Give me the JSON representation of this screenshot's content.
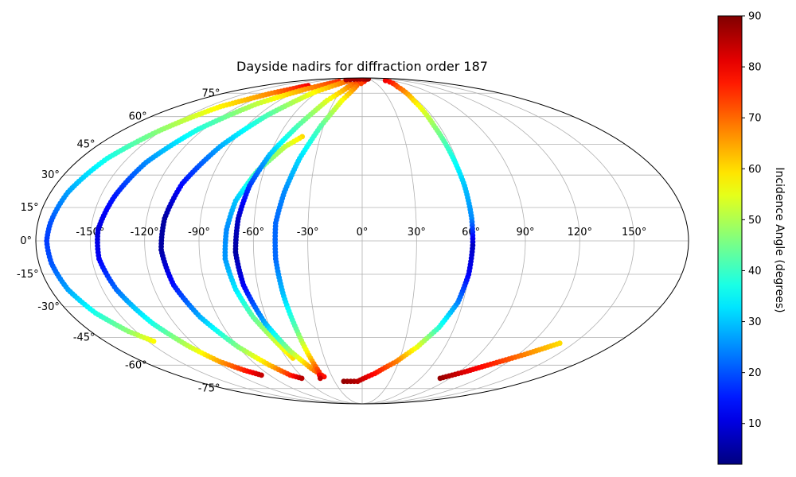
{
  "chart_data": {
    "type": "scatter",
    "projection": "mollweide",
    "title": "Dayside nadirs for diffraction order 187",
    "grid": true,
    "longitude_ticks": [
      -150,
      -120,
      -90,
      -60,
      -30,
      0,
      30,
      60,
      90,
      120,
      150
    ],
    "longitude_tick_labels": [
      "-150°",
      "-120°",
      "-90°",
      "-60°",
      "-30°",
      "0°",
      "30°",
      "60°",
      "90°",
      "120°",
      "150°"
    ],
    "latitude_ticks": [
      -75,
      -60,
      -45,
      -30,
      -15,
      0,
      15,
      30,
      45,
      60,
      75
    ],
    "latitude_tick_labels": [
      "-75°",
      "-60°",
      "-45°",
      "-30°",
      "-15°",
      "0°",
      "15°",
      "30°",
      "45°",
      "60°",
      "75°"
    ],
    "colormap": "jet",
    "colorbar": {
      "label": "Incidence Angle (degrees)",
      "range": [
        2,
        90
      ],
      "ticks": [
        10,
        20,
        30,
        40,
        50,
        60,
        70,
        80,
        90
      ],
      "tick_labels": [
        "10",
        "20",
        "30",
        "40",
        "50",
        "60",
        "70",
        "80",
        "90"
      ],
      "placement": "right"
    },
    "series": [
      {
        "points": [
          {
            "lon": -98,
            "lat": 81,
            "inc": 80
          },
          {
            "lon": -118,
            "lat": 75,
            "inc": 68
          },
          {
            "lon": -138,
            "lat": 66,
            "inc": 58
          },
          {
            "lon": -152,
            "lat": 52,
            "inc": 47
          },
          {
            "lon": -163,
            "lat": 38,
            "inc": 37
          },
          {
            "lon": -170,
            "lat": 22,
            "inc": 27
          },
          {
            "lon": -173,
            "lat": 8,
            "inc": 20
          },
          {
            "lon": -174,
            "lat": 0,
            "inc": 18
          },
          {
            "lon": -173,
            "lat": -10,
            "inc": 20
          },
          {
            "lon": -170,
            "lat": -22,
            "inc": 27
          },
          {
            "lon": -164,
            "lat": -33,
            "inc": 37
          },
          {
            "lon": -155,
            "lat": -42,
            "inc": 47
          },
          {
            "lon": -146,
            "lat": -47,
            "inc": 57
          }
        ]
      },
      {
        "points": [
          {
            "lon": -62,
            "lat": 85,
            "inc": 76
          },
          {
            "lon": -86,
            "lat": 78,
            "inc": 66
          },
          {
            "lon": -107,
            "lat": 68,
            "inc": 52
          },
          {
            "lon": -124,
            "lat": 53,
            "inc": 38
          },
          {
            "lon": -136,
            "lat": 36,
            "inc": 25
          },
          {
            "lon": -142,
            "lat": 20,
            "inc": 15
          },
          {
            "lon": -146,
            "lat": 5,
            "inc": 10
          },
          {
            "lon": -146,
            "lat": -8,
            "inc": 12
          },
          {
            "lon": -142,
            "lat": -22,
            "inc": 22
          },
          {
            "lon": -134,
            "lat": -38,
            "inc": 37
          },
          {
            "lon": -125,
            "lat": -50,
            "inc": 52
          },
          {
            "lon": -117,
            "lat": -58,
            "inc": 65
          },
          {
            "lon": -107,
            "lat": -63,
            "inc": 76
          },
          {
            "lon": -98,
            "lat": -66,
            "inc": 84
          }
        ]
      },
      {
        "points": [
          {
            "lon": -40,
            "lat": 86,
            "inc": 72
          },
          {
            "lon": -64,
            "lat": 76,
            "inc": 58
          },
          {
            "lon": -82,
            "lat": 61,
            "inc": 42
          },
          {
            "lon": -96,
            "lat": 44,
            "inc": 28
          },
          {
            "lon": -106,
            "lat": 26,
            "inc": 14
          },
          {
            "lon": -110,
            "lat": 10,
            "inc": 5
          },
          {
            "lon": -111,
            "lat": -4,
            "inc": 5
          },
          {
            "lon": -108,
            "lat": -20,
            "inc": 14
          },
          {
            "lon": -101,
            "lat": -35,
            "inc": 28
          },
          {
            "lon": -90,
            "lat": -50,
            "inc": 46
          },
          {
            "lon": -79,
            "lat": -60,
            "inc": 62
          },
          {
            "lon": -70,
            "lat": -66,
            "inc": 76
          },
          {
            "lon": -62,
            "lat": -68,
            "inc": 85
          }
        ]
      },
      {
        "points": [
          {
            "lon": -43,
            "lat": 49,
            "inc": 60
          },
          {
            "lon": -52,
            "lat": 44,
            "inc": 52
          },
          {
            "lon": -64,
            "lat": 32,
            "inc": 42
          },
          {
            "lon": -72,
            "lat": 18,
            "inc": 30
          },
          {
            "lon": -75,
            "lat": 5,
            "inc": 25
          },
          {
            "lon": -76,
            "lat": -8,
            "inc": 26
          },
          {
            "lon": -73,
            "lat": -22,
            "inc": 33
          },
          {
            "lon": -68,
            "lat": -35,
            "inc": 43
          },
          {
            "lon": -60,
            "lat": -48,
            "inc": 53
          },
          {
            "lon": -55,
            "lat": -56,
            "inc": 60
          }
        ]
      },
      {
        "points": [
          {
            "lon": 0,
            "lat": 87,
            "inc": 82
          },
          {
            "lon": -20,
            "lat": 82,
            "inc": 70
          },
          {
            "lon": -38,
            "lat": 70,
            "inc": 55
          },
          {
            "lon": -50,
            "lat": 55,
            "inc": 42
          },
          {
            "lon": -60,
            "lat": 40,
            "inc": 30
          },
          {
            "lon": -66,
            "lat": 25,
            "inc": 18
          },
          {
            "lon": -69,
            "lat": 10,
            "inc": 8
          },
          {
            "lon": -70,
            "lat": -5,
            "inc": 5
          },
          {
            "lon": -68,
            "lat": -20,
            "inc": 12
          },
          {
            "lon": -62,
            "lat": -38,
            "inc": 28
          },
          {
            "lon": -54,
            "lat": -52,
            "inc": 48
          },
          {
            "lon": -45,
            "lat": -62,
            "inc": 66
          },
          {
            "lon": -38,
            "lat": -67,
            "inc": 78
          }
        ]
      },
      {
        "points": [
          {
            "lon": 13,
            "lat": 87,
            "inc": 80
          },
          {
            "lon": -10,
            "lat": 81,
            "inc": 70
          },
          {
            "lon": -22,
            "lat": 70,
            "inc": 57
          },
          {
            "lon": -32,
            "lat": 55,
            "inc": 43
          },
          {
            "lon": -40,
            "lat": 38,
            "inc": 32
          },
          {
            "lon": -45,
            "lat": 22,
            "inc": 25
          },
          {
            "lon": -48,
            "lat": 8,
            "inc": 22
          },
          {
            "lon": -48,
            "lat": -8,
            "inc": 22
          },
          {
            "lon": -46,
            "lat": -25,
            "inc": 30
          },
          {
            "lon": -43,
            "lat": -42,
            "inc": 44
          },
          {
            "lon": -41,
            "lat": -56,
            "inc": 62
          },
          {
            "lon": -40,
            "lat": -64,
            "inc": 75
          },
          {
            "lon": -43,
            "lat": -68,
            "inc": 84
          }
        ]
      },
      {
        "points": [
          {
            "lon": -60,
            "lat": 87,
            "inc": 86
          },
          {
            "lon": -25,
            "lat": 88,
            "inc": 87
          },
          {
            "lon": 5,
            "lat": 88,
            "inc": 86
          },
          {
            "lon": 30,
            "lat": 88,
            "inc": 88
          }
        ]
      },
      {
        "points": [
          {
            "lon": 90,
            "lat": 87,
            "inc": 88
          },
          {
            "lon": 72,
            "lat": 86,
            "inc": 80
          },
          {
            "lon": 60,
            "lat": 80,
            "inc": 72
          },
          {
            "lon": 56,
            "lat": 70,
            "inc": 60
          },
          {
            "lon": 56,
            "lat": 55,
            "inc": 48
          },
          {
            "lon": 58,
            "lat": 40,
            "inc": 38
          },
          {
            "lon": 60,
            "lat": 25,
            "inc": 30
          },
          {
            "lon": 61,
            "lat": 10,
            "inc": 25
          },
          {
            "lon": 61,
            "lat": -2,
            "inc": 8
          },
          {
            "lon": 60,
            "lat": -15,
            "inc": 12
          },
          {
            "lon": 57,
            "lat": -28,
            "inc": 24
          },
          {
            "lon": 50,
            "lat": -40,
            "inc": 38
          },
          {
            "lon": 40,
            "lat": -50,
            "inc": 55
          },
          {
            "lon": 28,
            "lat": -58,
            "inc": 68
          },
          {
            "lon": 12,
            "lat": -65,
            "inc": 78
          },
          {
            "lon": -5,
            "lat": -70,
            "inc": 85
          },
          {
            "lon": -20,
            "lat": -70,
            "inc": 88
          }
        ]
      },
      {
        "points": [
          {
            "lon": 80,
            "lat": -68,
            "inc": 88
          },
          {
            "lon": 95,
            "lat": -64,
            "inc": 82
          },
          {
            "lon": 110,
            "lat": -59,
            "inc": 76
          },
          {
            "lon": 125,
            "lat": -54,
            "inc": 68
          },
          {
            "lon": 140,
            "lat": -48,
            "inc": 60
          }
        ]
      }
    ]
  }
}
